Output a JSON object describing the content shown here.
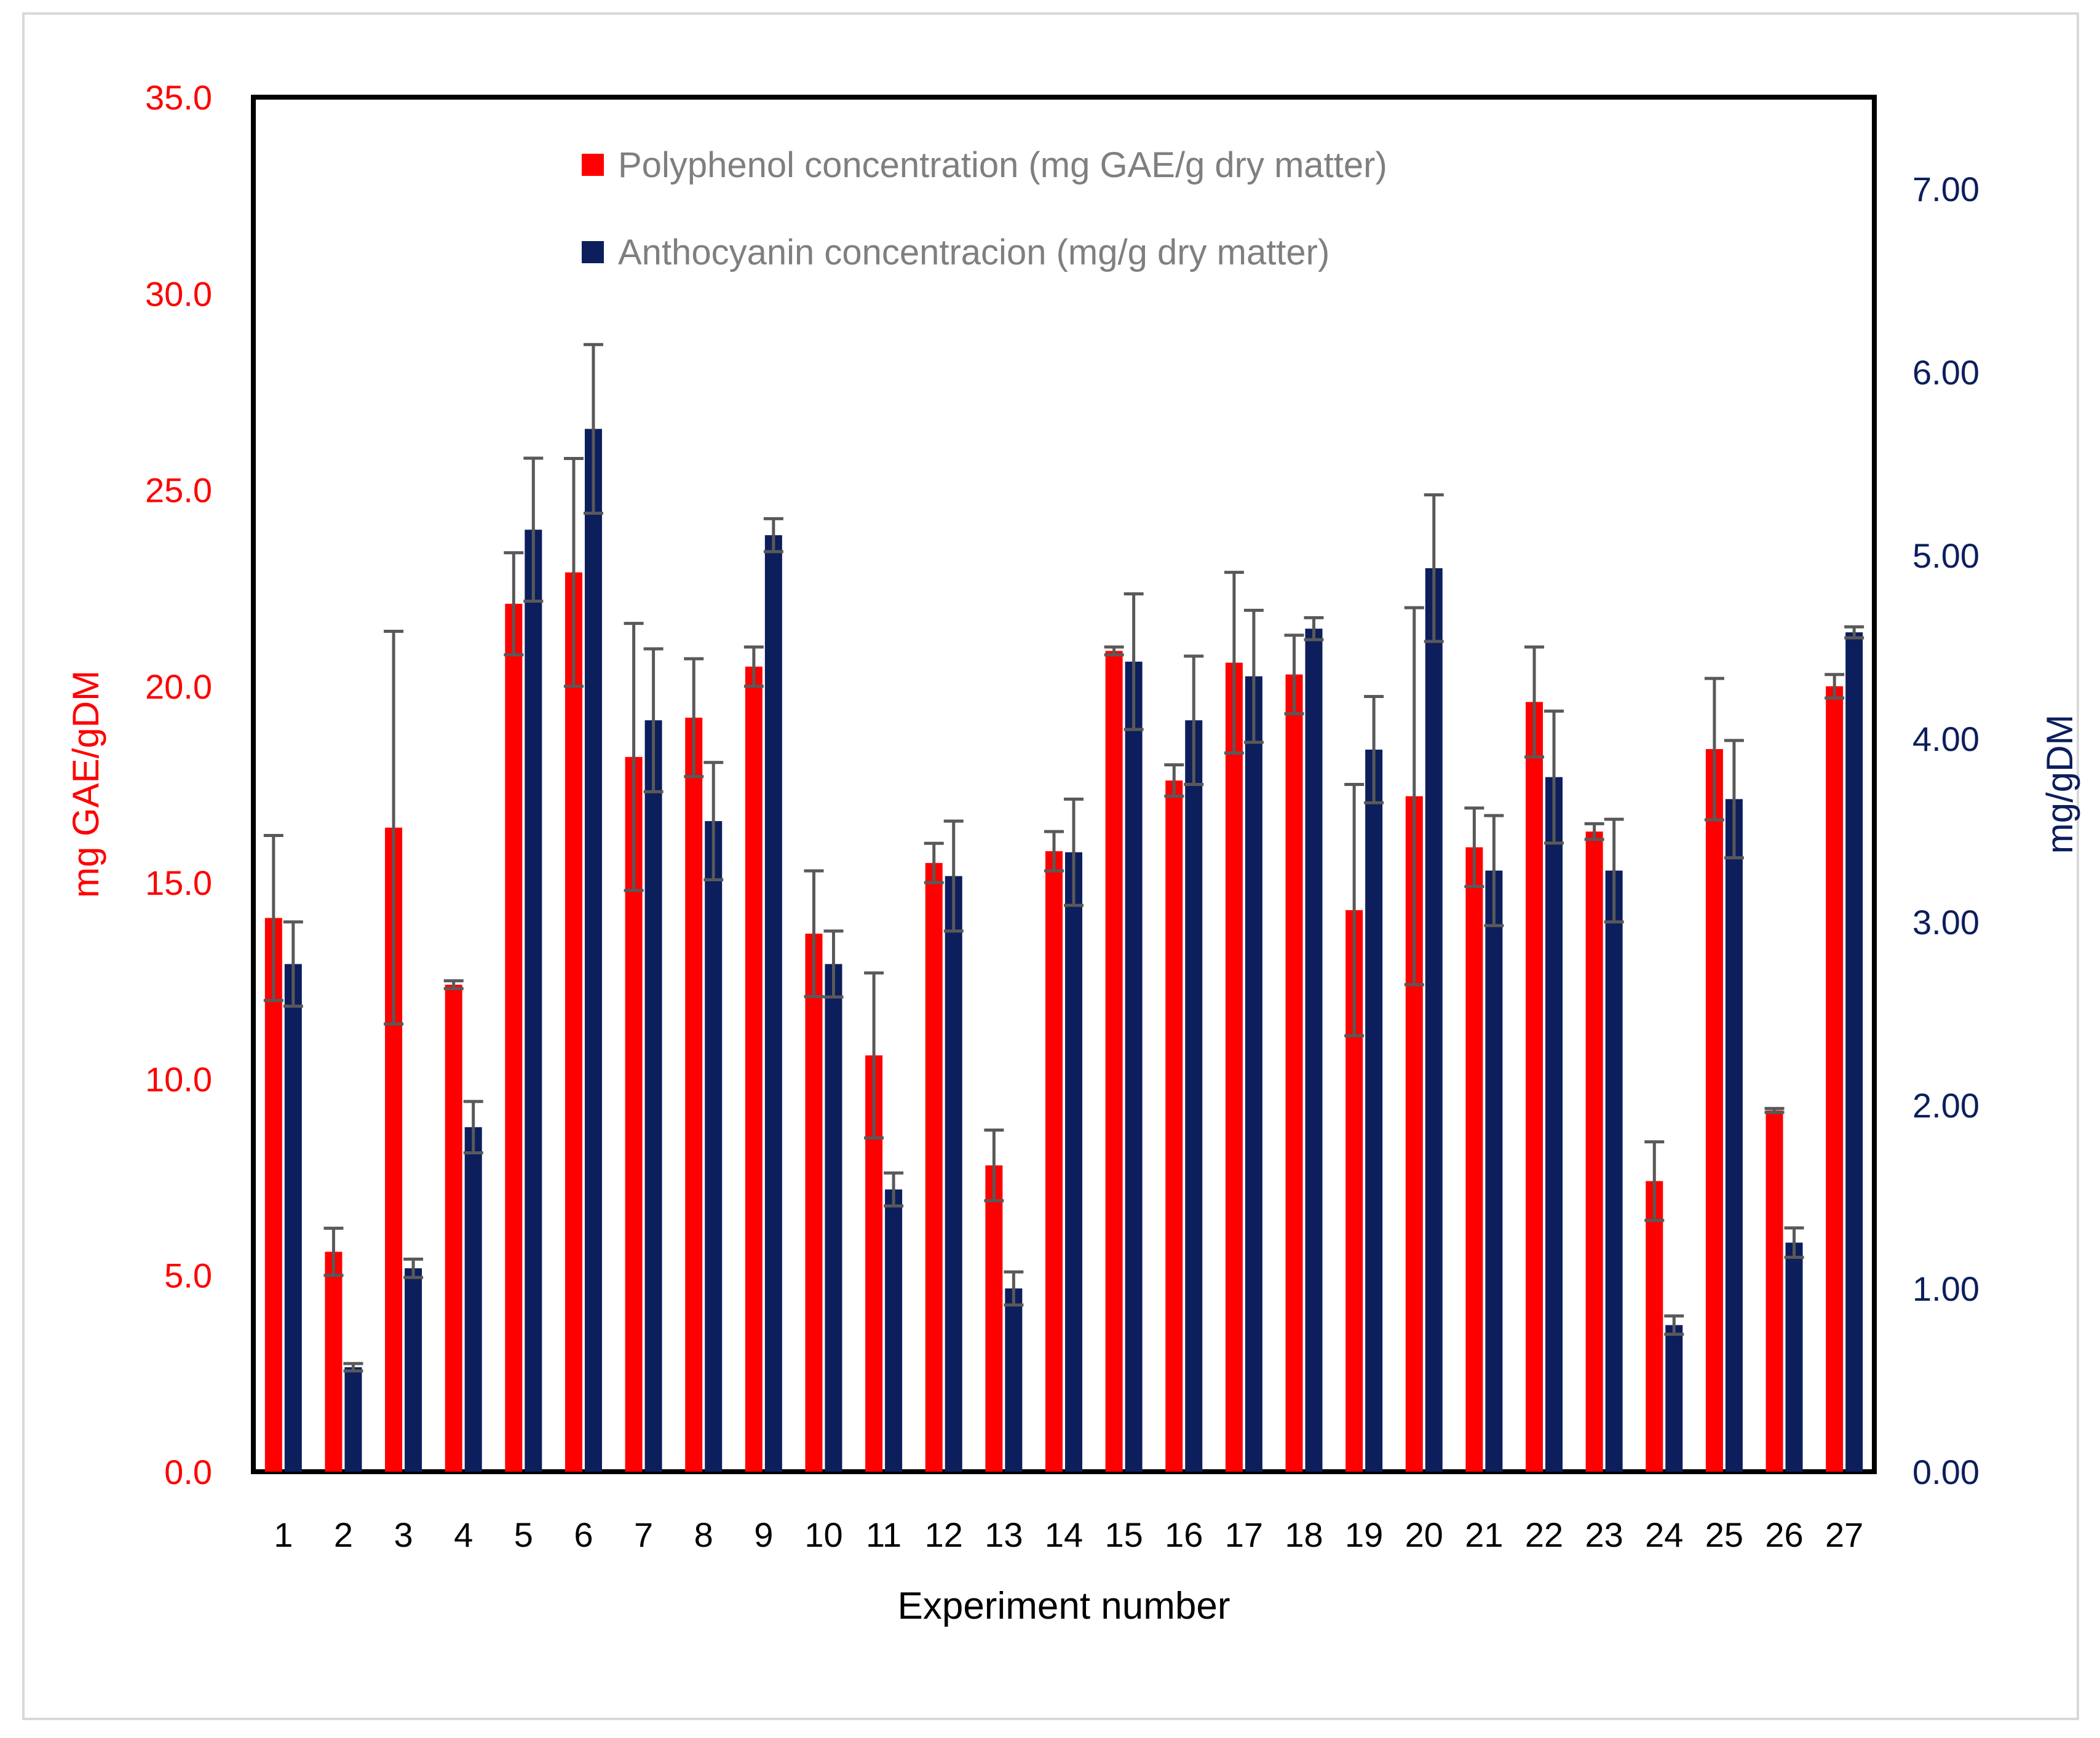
{
  "chart_data": {
    "type": "bar",
    "xlabel": "Experiment number",
    "ylabel_left": "mg GAE/gDM",
    "ylabel_right": "mg/gDM",
    "ylim_left": [
      0,
      35
    ],
    "ylim_right": [
      0,
      7.5
    ],
    "left_ticks": [
      "0.0",
      "5.0",
      "10.0",
      "15.0",
      "20.0",
      "25.0",
      "30.0",
      "35.0"
    ],
    "right_ticks": [
      "0.00",
      "1.00",
      "2.00",
      "3.00",
      "4.00",
      "5.00",
      "6.00",
      "7.00"
    ],
    "categories": [
      "1",
      "2",
      "3",
      "4",
      "5",
      "6",
      "7",
      "8",
      "9",
      "10",
      "11",
      "12",
      "13",
      "14",
      "15",
      "16",
      "17",
      "18",
      "19",
      "20",
      "21",
      "22",
      "23",
      "24",
      "25",
      "26",
      "27"
    ],
    "legend_position": "top",
    "series": [
      {
        "name": "Polyphenol concentration (mg GAE/g dry matter)",
        "axis": "left",
        "color": "#ff0000",
        "values": [
          14.1,
          5.6,
          16.4,
          12.4,
          22.1,
          22.9,
          18.2,
          19.2,
          20.5,
          13.7,
          10.6,
          15.5,
          7.8,
          15.8,
          20.9,
          17.6,
          20.6,
          20.3,
          14.3,
          17.2,
          15.9,
          19.6,
          16.3,
          7.4,
          18.4,
          9.2,
          20.0
        ],
        "errors": [
          2.1,
          0.6,
          5.0,
          0.1,
          1.3,
          2.9,
          3.4,
          1.5,
          0.5,
          1.6,
          2.1,
          0.5,
          0.9,
          0.5,
          0.1,
          0.4,
          2.3,
          1.0,
          3.2,
          4.8,
          1.0,
          1.4,
          0.2,
          1.0,
          1.8,
          0.05,
          0.3
        ]
      },
      {
        "name": "Anthocyanin concentracion (mg/g dry matter)",
        "axis": "right",
        "color": "#0c1e5c",
        "values": [
          2.77,
          0.57,
          1.11,
          1.88,
          5.14,
          5.69,
          4.1,
          3.55,
          5.11,
          2.77,
          1.54,
          3.25,
          1.0,
          3.38,
          4.42,
          4.1,
          4.34,
          4.6,
          3.94,
          4.93,
          3.28,
          3.79,
          3.28,
          0.8,
          3.67,
          1.25,
          4.58
        ]
      }
    ],
    "series_2_errors": [
      0.23,
      0.02,
      0.05,
      0.14,
      0.39,
      0.46,
      0.39,
      0.32,
      0.09,
      0.18,
      0.09,
      0.3,
      0.09,
      0.29,
      0.37,
      0.35,
      0.36,
      0.06,
      0.29,
      0.4,
      0.3,
      0.36,
      0.28,
      0.05,
      0.32,
      0.08,
      0.03
    ]
  }
}
